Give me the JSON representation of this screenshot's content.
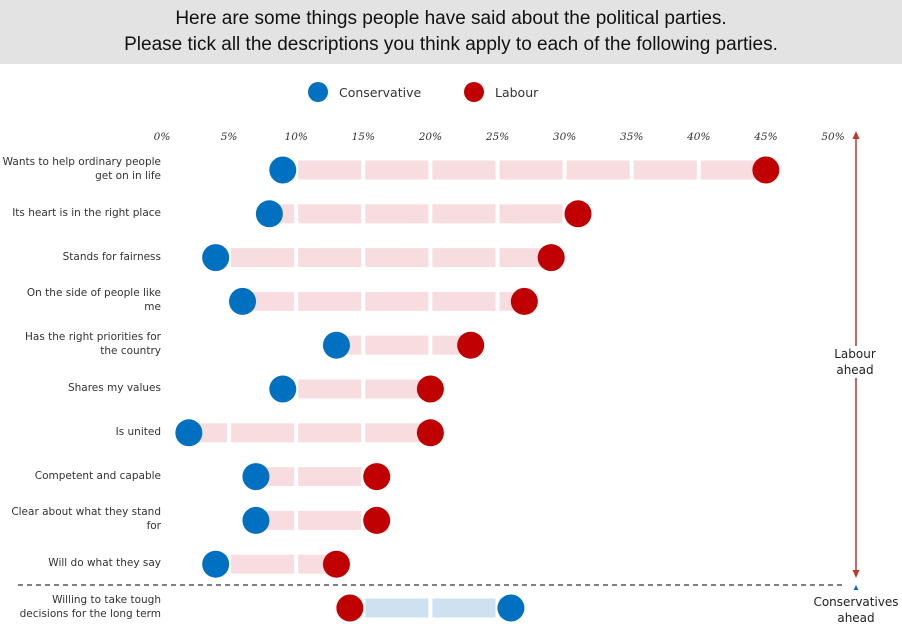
{
  "header": {
    "line1": "Here are some things people have said about the political parties.",
    "line2": "Please tick all the descriptions you think apply to each of the following parties."
  },
  "colors": {
    "conservative": "#0070c0",
    "labour": "#c00000",
    "labour_lead_bar": "#f7dde0",
    "conservative_lead_bar": "#cfe0f0",
    "arrow": "#c0392b"
  },
  "side_labels": {
    "labour_ahead": "Labour ahead",
    "conservatives_ahead": "Conservatives ahead"
  },
  "chart_data": {
    "type": "dumbbell",
    "title": "Here are some things people have said about the political parties. Please tick all the descriptions you think apply to each of the following parties.",
    "xlabel": "",
    "ylabel": "",
    "xlim": [
      0,
      50
    ],
    "x_ticks": [
      0,
      5,
      10,
      15,
      20,
      25,
      30,
      35,
      40,
      45,
      50
    ],
    "x_tick_labels": [
      "0%",
      "5%",
      "10%",
      "15%",
      "20%",
      "25%",
      "30%",
      "35%",
      "40%",
      "45%",
      "50%"
    ],
    "grid": false,
    "legend": {
      "placement": "top-center",
      "entries": [
        "Conservative",
        "Labour"
      ]
    },
    "series": [
      {
        "name": "Conservative",
        "color": "#0070c0",
        "values": [
          9,
          8,
          4,
          6,
          13,
          9,
          2,
          7,
          7,
          4,
          26
        ]
      },
      {
        "name": "Labour",
        "color": "#c00000",
        "values": [
          45,
          31,
          29,
          27,
          23,
          20,
          20,
          16,
          16,
          13,
          14
        ]
      }
    ],
    "categories": [
      "Wants to help ordinary people get on in life",
      "Its heart is in the right place",
      "Stands for fairness",
      "On the side of people like me",
      "Has the right priorities for the country",
      "Shares my values",
      "Is united",
      "Competent and capable",
      "Clear about what they stand for",
      "Will do what they say",
      "Willing to take tough decisions for the long term"
    ],
    "category_lines": [
      [
        "Wants to help ordinary people",
        "get on in life"
      ],
      [
        "Its heart is in the right place"
      ],
      [
        "Stands for fairness"
      ],
      [
        "On the side of people like",
        "me"
      ],
      [
        "Has the right priorities for",
        "the country"
      ],
      [
        "Shares my values"
      ],
      [
        "Is united"
      ],
      [
        "Competent and capable"
      ],
      [
        "Clear about what they stand",
        "for"
      ],
      [
        "Will do what they say"
      ],
      [
        "Willing to take tough",
        "decisions for the long term"
      ]
    ],
    "annotations": [
      {
        "text": "Labour ahead",
        "applies_to_rows": [
          0,
          1,
          2,
          3,
          4,
          5,
          6,
          7,
          8,
          9
        ]
      },
      {
        "text": "Conservatives ahead",
        "applies_to_rows": [
          10
        ]
      }
    ]
  }
}
